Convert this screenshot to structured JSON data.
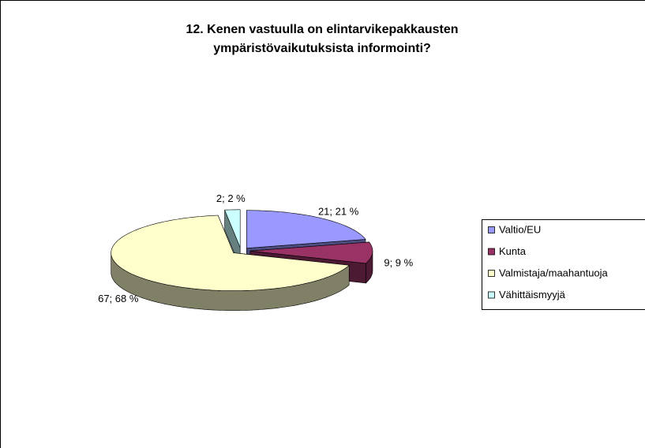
{
  "chart_data": {
    "type": "pie3d",
    "title": [
      "12. Kenen vastuulla on elintarvikepakkausten",
      "ympäristövaikutuksista informointi?"
    ],
    "categories": [
      "Valtio/EU",
      "Kunta",
      "Valmistaja/maahantuoja",
      "Vähittäismyyjä"
    ],
    "values": [
      21,
      9,
      67,
      2
    ],
    "value_labels": [
      "21; 21 %",
      "9; 9 %",
      "67; 68 %",
      "2; 2 %"
    ],
    "colors": [
      "#9999ff",
      "#993366",
      "#ffffcc",
      "#ccffff"
    ],
    "legend": "right"
  }
}
